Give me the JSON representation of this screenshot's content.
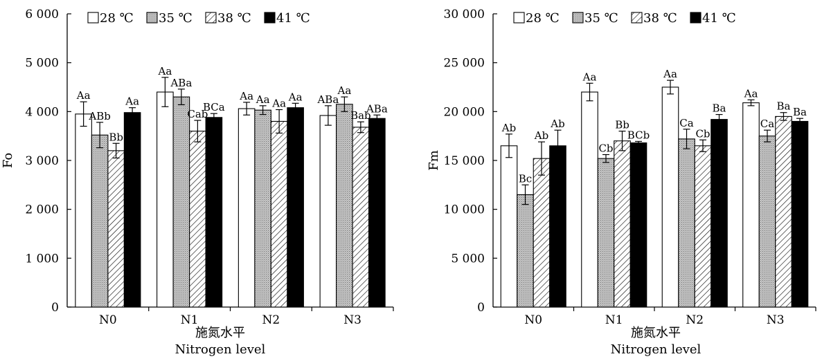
{
  "xlabel_cn": "施氮水平",
  "xlabel_en": "Nitrogen level",
  "legend": [
    "28 ℃",
    "35 ℃",
    "38 ℃",
    "41 ℃"
  ],
  "chart_data": [
    {
      "type": "bar",
      "ylabel": "Fo",
      "xlabel": "施氮水平 Nitrogen level",
      "ylim": [
        0,
        6000
      ],
      "yticks": [
        0,
        1000,
        2000,
        3000,
        4000,
        5000,
        6000
      ],
      "ytick_labels": [
        "0",
        "1 000",
        "2 000",
        "3 000",
        "4 000",
        "5 000",
        "6 000"
      ],
      "categories": [
        "N0",
        "N1",
        "N2",
        "N3"
      ],
      "legend_position": "top-left",
      "series": [
        {
          "name": "28 ℃",
          "values": [
            3950,
            4400,
            4060,
            3920
          ],
          "errors": [
            250,
            300,
            130,
            200
          ],
          "labels": [
            "Aa",
            "Aa",
            "Aa",
            "ABa"
          ]
        },
        {
          "name": "35 ℃",
          "values": [
            3520,
            4300,
            4030,
            4150
          ],
          "errors": [
            260,
            160,
            90,
            150
          ],
          "labels": [
            "ABb",
            "ABa",
            "Aa",
            "Aa"
          ]
        },
        {
          "name": "38 ℃",
          "values": [
            3200,
            3600,
            3800,
            3680
          ],
          "errors": [
            150,
            220,
            240,
            110
          ],
          "labels": [
            "Bb",
            "Cab",
            "Aa",
            "Bab"
          ]
        },
        {
          "name": "41 ℃",
          "values": [
            3980,
            3880,
            4080,
            3860
          ],
          "errors": [
            100,
            80,
            90,
            70
          ],
          "labels": [
            "Aa",
            "BCa",
            "Aa",
            "ABa"
          ]
        }
      ]
    },
    {
      "type": "bar",
      "ylabel": "Fm",
      "xlabel": "施氮水平 Nitrogen level",
      "ylim": [
        0,
        30000
      ],
      "yticks": [
        0,
        5000,
        10000,
        15000,
        20000,
        25000,
        30000
      ],
      "ytick_labels": [
        "0",
        "5 000",
        "10 000",
        "15 000",
        "20 000",
        "25 000",
        "30 000"
      ],
      "categories": [
        "N0",
        "N1",
        "N2",
        "N3"
      ],
      "legend_position": "top-left",
      "series": [
        {
          "name": "28 ℃",
          "values": [
            16500,
            22000,
            22500,
            20900
          ],
          "errors": [
            1200,
            900,
            700,
            300
          ],
          "labels": [
            "Ab",
            "Aa",
            "Aa",
            "Aa"
          ]
        },
        {
          "name": "35 ℃",
          "values": [
            11500,
            15200,
            17200,
            17500
          ],
          "errors": [
            1000,
            400,
            1000,
            600
          ],
          "labels": [
            "Bc",
            "Cb",
            "Ca",
            "Ca"
          ]
        },
        {
          "name": "38 ℃",
          "values": [
            15200,
            17000,
            16500,
            19500
          ],
          "errors": [
            1700,
            1000,
            600,
            400
          ],
          "labels": [
            "Ab",
            "Bb",
            "Cb",
            "Ba"
          ]
        },
        {
          "name": "41 ℃",
          "values": [
            16500,
            16800,
            19200,
            19000
          ],
          "errors": [
            1600,
            150,
            500,
            300
          ],
          "labels": [
            "Ab",
            "BCb",
            "Ba",
            "Ba"
          ]
        }
      ]
    }
  ]
}
